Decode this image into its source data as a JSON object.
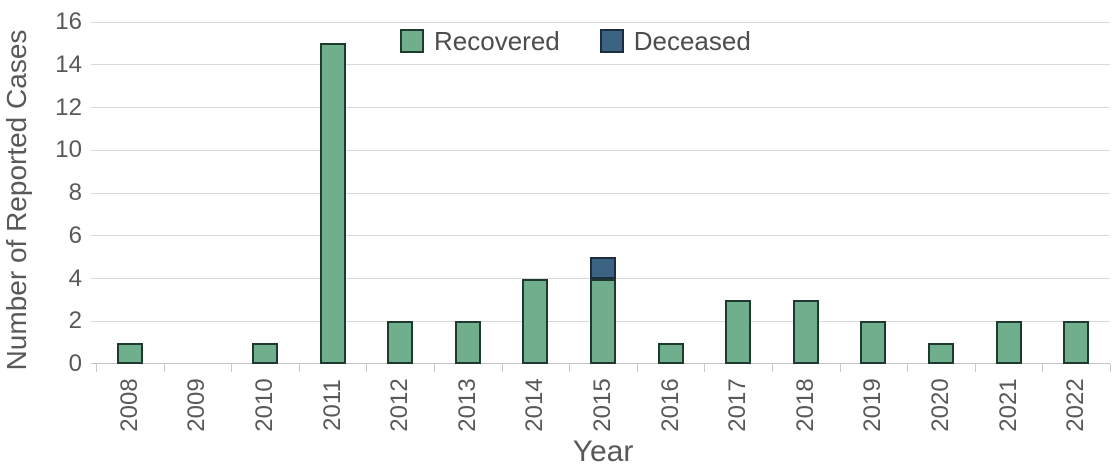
{
  "chart_data": {
    "type": "bar",
    "stacked": true,
    "title": "",
    "xlabel": "Year",
    "ylabel": "Number of Reported Cases",
    "categories": [
      "2008",
      "2009",
      "2010",
      "2011",
      "2012",
      "2013",
      "2014",
      "2015",
      "2016",
      "2017",
      "2018",
      "2019",
      "2020",
      "2021",
      "2022"
    ],
    "series": [
      {
        "name": "Recovered",
        "color": "#6FAF8D",
        "border_color": "#1E3A2E",
        "values": [
          1,
          0,
          1,
          15,
          2,
          2,
          4,
          4,
          1,
          3,
          3,
          2,
          1,
          2,
          2
        ]
      },
      {
        "name": "Deceased",
        "color": "#3C6381",
        "border_color": "#1D2C3F",
        "values": [
          0,
          0,
          0,
          0,
          0,
          0,
          0,
          1,
          0,
          0,
          0,
          0,
          0,
          0,
          0
        ]
      }
    ],
    "ylim": [
      0,
      16
    ],
    "yticks": [
      0,
      2,
      4,
      6,
      8,
      10,
      12,
      14,
      16
    ],
    "grid": "horizontal",
    "legend_position": "top-center"
  },
  "colors": {
    "background": "#FFFFFF",
    "gridline": "#D9D9D9",
    "axis_line": "#C6C6C6",
    "tick_label": "#595959",
    "axis_title": "#595959",
    "legend_text": "#4D4D4D"
  }
}
